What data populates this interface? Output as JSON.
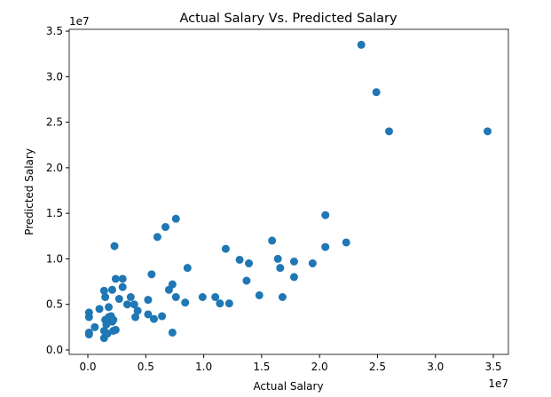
{
  "chart_data": {
    "type": "scatter",
    "title": "Actual Salary Vs. Predicted Salary",
    "x_label": "Actual Salary",
    "y_label": "Predicted Salary",
    "x_offset_label": "1e7",
    "y_offset_label": "1e7",
    "color": "#1f77b4",
    "xlim": [
      -0.161,
      3.63
    ],
    "ylim": [
      -0.049,
      3.52
    ],
    "xticks": [
      {
        "value": 0,
        "label": "0.0"
      },
      {
        "value": 0.5,
        "label": "0.5"
      },
      {
        "value": 1,
        "label": "1.0"
      },
      {
        "value": 1.5,
        "label": "1.5"
      },
      {
        "value": 2,
        "label": "2.0"
      },
      {
        "value": 2.5,
        "label": "2.5"
      },
      {
        "value": 3,
        "label": "3.0"
      },
      {
        "value": 3.5,
        "label": "3.5"
      }
    ],
    "yticks": [
      {
        "value": 0,
        "label": "0.0"
      },
      {
        "value": 0.5,
        "label": "0.5"
      },
      {
        "value": 1,
        "label": "1.0"
      },
      {
        "value": 1.5,
        "label": "1.5"
      },
      {
        "value": 2,
        "label": "2.0"
      },
      {
        "value": 2.5,
        "label": "2.5"
      },
      {
        "value": 3,
        "label": "3.0"
      },
      {
        "value": 3.5,
        "label": "3.5"
      }
    ],
    "x": [
      2.36,
      2.49,
      2.6,
      3.45,
      2.05,
      2.05,
      2.23,
      1.59,
      1.64,
      1.66,
      1.78,
      1.78,
      1.94,
      1.19,
      1.31,
      1.39,
      1.37,
      1.48,
      1.68,
      0.76,
      0.67,
      0.6,
      0.23,
      0.86,
      0.55,
      0.73,
      0.7,
      0.76,
      0.99,
      1.1,
      1.14,
      1.22,
      0.84,
      0.64,
      0.57,
      0.73,
      0.24,
      0.3,
      0.14,
      0.21,
      0.15,
      0.27,
      0.37,
      0.3,
      0.34,
      0.4,
      0.52,
      0.43,
      0.41,
      0.52,
      0.18,
      0.1,
      0.01,
      0.01,
      0.2,
      0.15,
      0.21,
      0.16,
      0.14,
      0.22,
      0.06,
      0.01,
      0.01,
      0.14,
      0.17,
      0.24,
      0.18,
      0.22
    ],
    "values": [
      3.35,
      2.83,
      2.4,
      2.4,
      1.48,
      1.13,
      1.18,
      1.2,
      1.0,
      0.9,
      0.97,
      0.8,
      0.95,
      1.11,
      0.99,
      0.95,
      0.76,
      0.6,
      0.58,
      1.44,
      1.35,
      1.24,
      1.14,
      0.9,
      0.83,
      0.72,
      0.66,
      0.58,
      0.58,
      0.58,
      0.51,
      0.51,
      0.52,
      0.37,
      0.34,
      0.19,
      0.78,
      0.78,
      0.65,
      0.66,
      0.58,
      0.56,
      0.58,
      0.69,
      0.5,
      0.5,
      0.55,
      0.43,
      0.36,
      0.39,
      0.47,
      0.45,
      0.41,
      0.36,
      0.37,
      0.33,
      0.31,
      0.28,
      0.21,
      0.21,
      0.25,
      0.19,
      0.17,
      0.13,
      0.18,
      0.22,
      0.36,
      0.33
    ]
  }
}
